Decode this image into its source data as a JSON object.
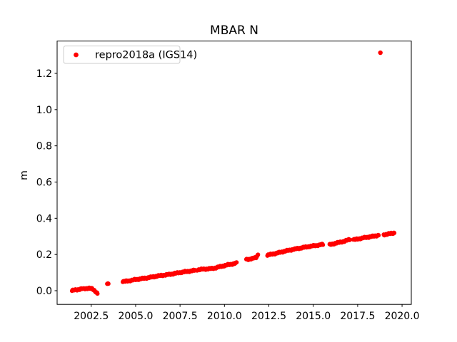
{
  "figure": {
    "background": "#ffffff",
    "frame_color": "#000000"
  },
  "chart_data": {
    "type": "scatter",
    "title": "MBAR N",
    "xlabel": "",
    "ylabel": "m",
    "grid": false,
    "xlim": [
      2000.58,
      2020.52
    ],
    "ylim": [
      -0.0755,
      1.3786
    ],
    "xticks": {
      "values": [
        2002.5,
        2005.0,
        2007.5,
        2010.0,
        2012.5,
        2015.0,
        2017.5,
        2020.0
      ],
      "labels": [
        "2002.5",
        "2005.0",
        "2007.5",
        "2010.0",
        "2012.5",
        "2015.0",
        "2017.5",
        "2020.0"
      ]
    },
    "yticks": {
      "values": [
        0.0,
        0.2,
        0.4,
        0.6,
        0.8,
        1.0,
        1.2
      ],
      "labels": [
        "0.0",
        "0.2",
        "0.4",
        "0.6",
        "0.8",
        "1.0",
        "1.2"
      ]
    },
    "legend": {
      "position": "upper left",
      "entries": [
        {
          "label": "repro2018a (IGS14)",
          "marker": "dot",
          "color": "#ff0000"
        }
      ]
    },
    "series": [
      {
        "name": "repro2018a (IGS14)",
        "color": "#ff0000",
        "marker": "point",
        "marker_radius_px": 3,
        "sample_step_years": 0.022,
        "noise_terms": [
          [
            0.0022,
            41.7,
            0.0
          ],
          [
            0.0016,
            13.1,
            1.0
          ],
          [
            0.0012,
            197.0,
            2.0
          ]
        ],
        "segments": [
          [
            [
              2001.42,
              0.001
            ],
            [
              2001.7,
              0.005
            ],
            [
              2002.0,
              0.012
            ]
          ],
          [
            [
              2002.06,
              0.01
            ],
            [
              2002.35,
              0.015
            ],
            [
              2002.55,
              0.01
            ],
            [
              2002.72,
              -0.002
            ],
            [
              2002.86,
              -0.016
            ]
          ],
          [
            [
              2003.4,
              0.036
            ],
            [
              2003.47,
              0.037
            ]
          ],
          [
            [
              2004.28,
              0.05
            ],
            [
              2005.0,
              0.061
            ],
            [
              2006.0,
              0.077
            ],
            [
              2007.0,
              0.092
            ],
            [
              2008.0,
              0.108
            ],
            [
              2008.36,
              0.113
            ]
          ],
          [
            [
              2008.46,
              0.115
            ],
            [
              2009.4,
              0.124
            ],
            [
              2010.2,
              0.143
            ],
            [
              2010.7,
              0.153
            ]
          ],
          [
            [
              2011.23,
              0.172
            ],
            [
              2011.55,
              0.177
            ],
            [
              2011.78,
              0.184
            ],
            [
              2011.9,
              0.2
            ]
          ],
          [
            [
              2012.42,
              0.196
            ],
            [
              2013.0,
              0.209
            ],
            [
              2013.5,
              0.22
            ],
            [
              2014.1,
              0.233
            ],
            [
              2014.6,
              0.241
            ],
            [
              2015.1,
              0.249
            ],
            [
              2015.56,
              0.256
            ]
          ],
          [
            [
              2015.92,
              0.253
            ],
            [
              2016.3,
              0.263
            ],
            [
              2016.8,
              0.275
            ],
            [
              2017.08,
              0.284
            ]
          ],
          [
            [
              2017.25,
              0.281
            ],
            [
              2017.7,
              0.289
            ],
            [
              2018.2,
              0.298
            ],
            [
              2018.68,
              0.306
            ]
          ],
          [
            [
              2018.97,
              0.309
            ],
            [
              2019.3,
              0.314
            ],
            [
              2019.58,
              0.32
            ]
          ]
        ],
        "outlier_points": [
          [
            2018.78,
            1.314
          ]
        ]
      }
    ]
  }
}
